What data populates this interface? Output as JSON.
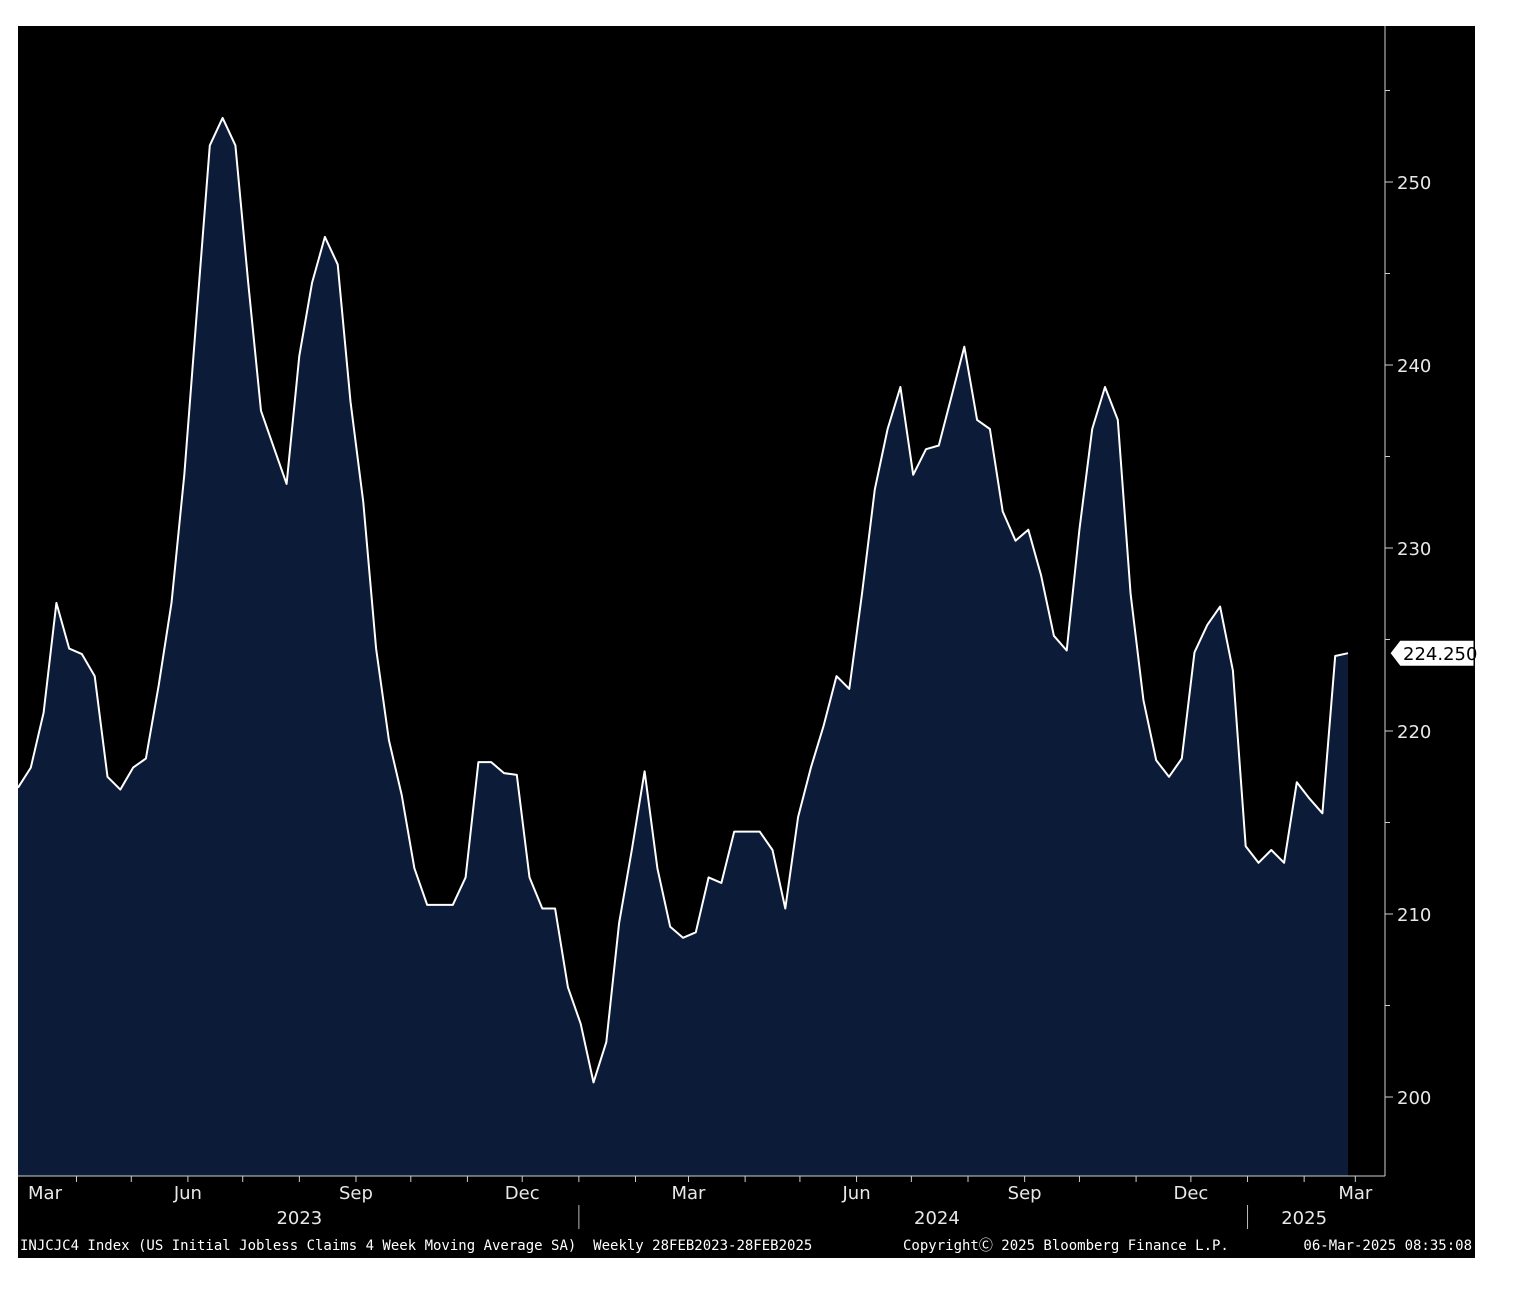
{
  "chart_data": {
    "type": "area",
    "title": "",
    "xlabel": "",
    "ylabel": "",
    "ylim": [
      195,
      258
    ],
    "y_ticks": [
      200,
      210,
      220,
      230,
      240,
      250
    ],
    "x_month_labels": [
      "Mar",
      "Jun",
      "Sep",
      "Dec",
      "Mar",
      "Jun",
      "Sep",
      "Dec",
      "Mar"
    ],
    "x_year_labels": [
      "2023",
      "2024",
      "2025"
    ],
    "last_value_label": "224.250",
    "grid": false,
    "legend": "none",
    "colors": {
      "background": "#000000",
      "area_fill": "#0c1c38",
      "line": "#ffffff",
      "frame": "#000000"
    },
    "series": [
      {
        "x": [
          "2023-02-28",
          "2023-03-07",
          "2023-03-14",
          "2023-03-21",
          "2023-03-28",
          "2023-04-04",
          "2023-04-11",
          "2023-04-18",
          "2023-04-25",
          "2023-05-02",
          "2023-05-09",
          "2023-05-16",
          "2023-05-23",
          "2023-05-30",
          "2023-06-06",
          "2023-06-13",
          "2023-06-20",
          "2023-06-27",
          "2023-07-04",
          "2023-07-11",
          "2023-07-18",
          "2023-07-25",
          "2023-08-01",
          "2023-08-08",
          "2023-08-15",
          "2023-08-22",
          "2023-08-29",
          "2023-09-05",
          "2023-09-12",
          "2023-09-19",
          "2023-09-26",
          "2023-10-03",
          "2023-10-10",
          "2023-10-17",
          "2023-10-24",
          "2023-10-31",
          "2023-11-07",
          "2023-11-14",
          "2023-11-21",
          "2023-11-28",
          "2023-12-05",
          "2023-12-12",
          "2023-12-19",
          "2023-12-26",
          "2024-01-02",
          "2024-01-09",
          "2024-01-16",
          "2024-01-23",
          "2024-01-30",
          "2024-02-06",
          "2024-02-13",
          "2024-02-20",
          "2024-02-27",
          "2024-03-05",
          "2024-03-12",
          "2024-03-19",
          "2024-03-26",
          "2024-04-02",
          "2024-04-09",
          "2024-04-16",
          "2024-04-23",
          "2024-04-30",
          "2024-05-07",
          "2024-05-14",
          "2024-05-21",
          "2024-05-28",
          "2024-06-04",
          "2024-06-11",
          "2024-06-18",
          "2024-06-25",
          "2024-07-02",
          "2024-07-09",
          "2024-07-16",
          "2024-07-23",
          "2024-07-30",
          "2024-08-06",
          "2024-08-13",
          "2024-08-20",
          "2024-08-27",
          "2024-09-03",
          "2024-09-10",
          "2024-09-17",
          "2024-09-24",
          "2024-10-01",
          "2024-10-08",
          "2024-10-15",
          "2024-10-22",
          "2024-10-29",
          "2024-11-05",
          "2024-11-12",
          "2024-11-19",
          "2024-11-26",
          "2024-12-03",
          "2024-12-10",
          "2024-12-17",
          "2024-12-24",
          "2024-12-31",
          "2025-01-07",
          "2025-01-14",
          "2025-01-21",
          "2025-01-28",
          "2025-02-04",
          "2025-02-11",
          "2025-02-18",
          "2025-02-25"
        ],
        "values": [
          216.9,
          218.0,
          221.0,
          227.0,
          224.5,
          224.2,
          223.0,
          217.5,
          216.8,
          218.0,
          218.5,
          222.5,
          227.0,
          234.0,
          243.0,
          252.0,
          253.5,
          252.0,
          244.5,
          237.5,
          235.5,
          233.5,
          240.5,
          244.5,
          247.0,
          245.5,
          238.0,
          232.5,
          224.5,
          219.5,
          216.5,
          212.5,
          210.5,
          210.5,
          210.5,
          212.0,
          218.3,
          218.3,
          217.7,
          217.6,
          212.0,
          210.3,
          210.3,
          206.0,
          204.0,
          200.8,
          203.0,
          209.5,
          213.5,
          217.8,
          212.5,
          209.3,
          208.7,
          209.0,
          212.0,
          211.7,
          214.5,
          214.5,
          214.5,
          213.5,
          210.3,
          215.3,
          218.0,
          220.3,
          223.0,
          222.3,
          227.5,
          233.2,
          236.5,
          238.8,
          234.0,
          235.4,
          235.6,
          238.3,
          241.0,
          237.0,
          236.5,
          232.0,
          230.4,
          231.0,
          228.5,
          225.2,
          224.4,
          231.0,
          236.5,
          238.8,
          237.0,
          227.5,
          221.7,
          218.4,
          217.5,
          218.5,
          224.3,
          225.8,
          226.8,
          223.3,
          213.7,
          212.8,
          213.5,
          212.8,
          217.2,
          216.3,
          215.5,
          224.1,
          224.25
        ]
      }
    ]
  },
  "footer": {
    "ticker": "INJCJC4 Index (US Initial Jobless Claims 4 Week Moving Average SA)  Weekly 28FEB2023-28FEB2025",
    "copyright": "CopyrightⒸ 2025 Bloomberg Finance L.P.",
    "timestamp": "06-Mar-2025 08:35:08"
  }
}
